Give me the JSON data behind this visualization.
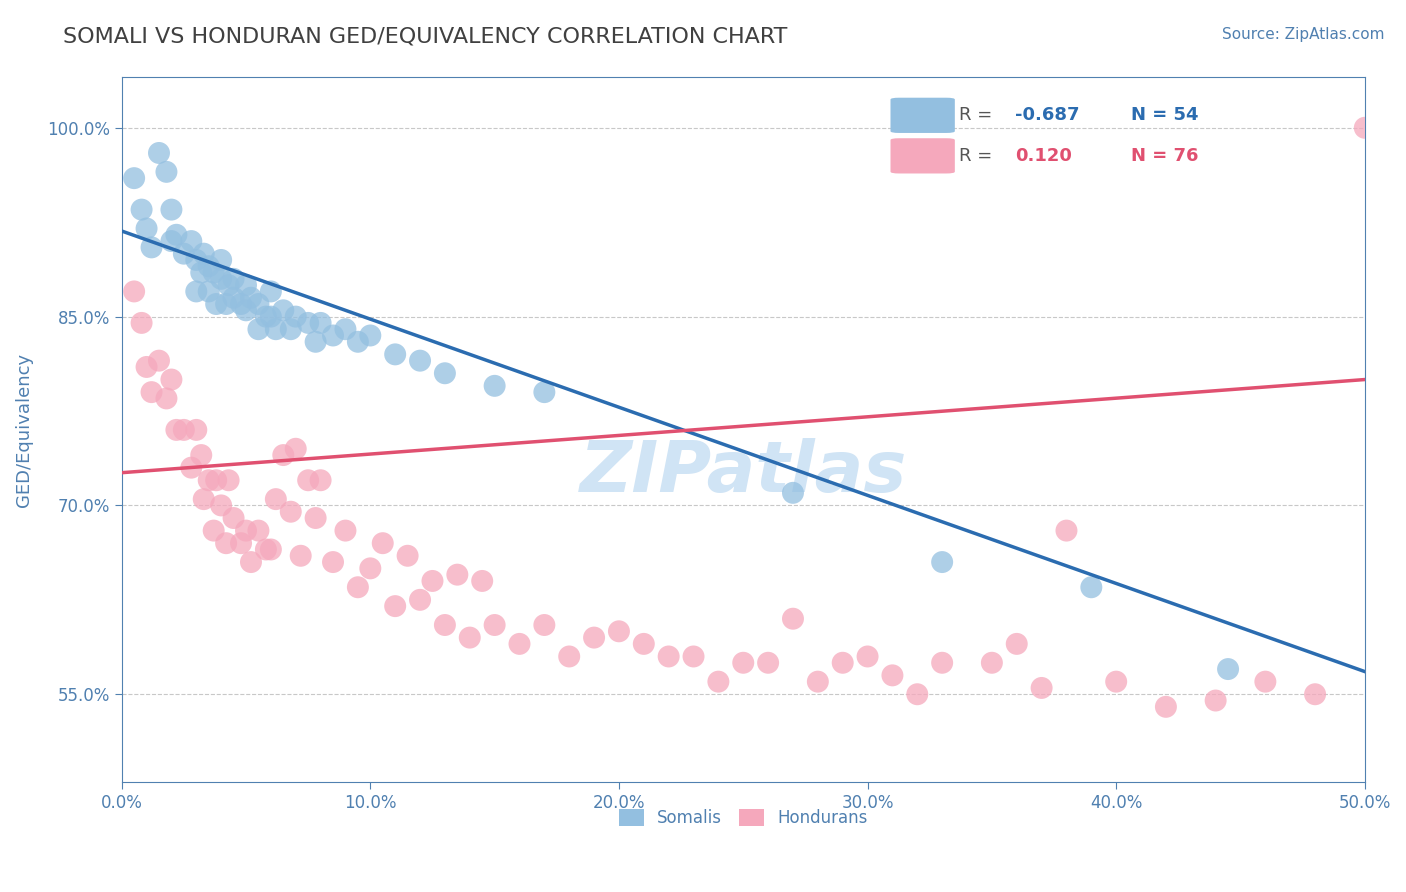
{
  "title": "SOMALI VS HONDURAN GED/EQUIVALENCY CORRELATION CHART",
  "source_text": "Source: ZipAtlas.com",
  "ylabel": "GED/Equivalency",
  "legend_somali_label": "Somalis",
  "legend_honduran_label": "Hondurans",
  "R_somali": -0.687,
  "N_somali": 54,
  "R_honduran": 0.12,
  "N_honduran": 76,
  "xlim": [
    0.0,
    0.5
  ],
  "ylim": [
    0.48,
    1.04
  ],
  "yticks": [
    0.55,
    0.7,
    0.85,
    1.0
  ],
  "ytick_labels": [
    "55.0%",
    "70.0%",
    "85.0%",
    "100.0%"
  ],
  "xticks": [
    0.0,
    0.1,
    0.2,
    0.3,
    0.4,
    0.5
  ],
  "xtick_labels": [
    "0.0%",
    "10.0%",
    "20.0%",
    "30.0%",
    "40.0%",
    "50.0%"
  ],
  "somali_color": "#93bfe0",
  "honduran_color": "#f5a8bc",
  "somali_line_color": "#2b6cb0",
  "honduran_line_color": "#e05070",
  "title_color": "#404040",
  "axis_color": "#5080b0",
  "watermark_color": "#d0e4f5",
  "background_color": "#ffffff",
  "grid_color": "#c8c8c8",
  "somali_points_x": [
    0.005,
    0.008,
    0.01,
    0.012,
    0.015,
    0.018,
    0.02,
    0.02,
    0.022,
    0.025,
    0.028,
    0.03,
    0.03,
    0.032,
    0.033,
    0.035,
    0.035,
    0.037,
    0.038,
    0.04,
    0.04,
    0.042,
    0.043,
    0.045,
    0.045,
    0.048,
    0.05,
    0.05,
    0.052,
    0.055,
    0.055,
    0.058,
    0.06,
    0.06,
    0.062,
    0.065,
    0.068,
    0.07,
    0.075,
    0.078,
    0.08,
    0.085,
    0.09,
    0.095,
    0.1,
    0.11,
    0.12,
    0.13,
    0.15,
    0.17,
    0.27,
    0.33,
    0.39,
    0.445
  ],
  "somali_points_y": [
    0.96,
    0.935,
    0.92,
    0.905,
    0.98,
    0.965,
    0.935,
    0.91,
    0.915,
    0.9,
    0.91,
    0.895,
    0.87,
    0.885,
    0.9,
    0.89,
    0.87,
    0.885,
    0.86,
    0.895,
    0.88,
    0.86,
    0.875,
    0.88,
    0.865,
    0.86,
    0.875,
    0.855,
    0.865,
    0.86,
    0.84,
    0.85,
    0.87,
    0.85,
    0.84,
    0.855,
    0.84,
    0.85,
    0.845,
    0.83,
    0.845,
    0.835,
    0.84,
    0.83,
    0.835,
    0.82,
    0.815,
    0.805,
    0.795,
    0.79,
    0.71,
    0.655,
    0.635,
    0.57
  ],
  "honduran_points_x": [
    0.005,
    0.008,
    0.01,
    0.012,
    0.015,
    0.018,
    0.02,
    0.022,
    0.025,
    0.028,
    0.03,
    0.032,
    0.033,
    0.035,
    0.037,
    0.038,
    0.04,
    0.042,
    0.043,
    0.045,
    0.048,
    0.05,
    0.052,
    0.055,
    0.058,
    0.06,
    0.062,
    0.065,
    0.068,
    0.07,
    0.072,
    0.075,
    0.078,
    0.08,
    0.085,
    0.09,
    0.095,
    0.1,
    0.105,
    0.11,
    0.115,
    0.12,
    0.125,
    0.13,
    0.135,
    0.14,
    0.145,
    0.15,
    0.16,
    0.17,
    0.18,
    0.19,
    0.2,
    0.21,
    0.22,
    0.23,
    0.24,
    0.25,
    0.26,
    0.27,
    0.28,
    0.29,
    0.3,
    0.31,
    0.32,
    0.33,
    0.35,
    0.36,
    0.37,
    0.38,
    0.4,
    0.42,
    0.44,
    0.46,
    0.48,
    0.5
  ],
  "honduran_points_y": [
    0.87,
    0.845,
    0.81,
    0.79,
    0.815,
    0.785,
    0.8,
    0.76,
    0.76,
    0.73,
    0.76,
    0.74,
    0.705,
    0.72,
    0.68,
    0.72,
    0.7,
    0.67,
    0.72,
    0.69,
    0.67,
    0.68,
    0.655,
    0.68,
    0.665,
    0.665,
    0.705,
    0.74,
    0.695,
    0.745,
    0.66,
    0.72,
    0.69,
    0.72,
    0.655,
    0.68,
    0.635,
    0.65,
    0.67,
    0.62,
    0.66,
    0.625,
    0.64,
    0.605,
    0.645,
    0.595,
    0.64,
    0.605,
    0.59,
    0.605,
    0.58,
    0.595,
    0.6,
    0.59,
    0.58,
    0.58,
    0.56,
    0.575,
    0.575,
    0.61,
    0.56,
    0.575,
    0.58,
    0.565,
    0.55,
    0.575,
    0.575,
    0.59,
    0.555,
    0.68,
    0.56,
    0.54,
    0.545,
    0.56,
    0.55,
    1.0
  ],
  "blue_line_x": [
    0.0,
    0.5
  ],
  "blue_line_y": [
    0.918,
    0.568
  ],
  "pink_line_x": [
    0.0,
    0.5
  ],
  "pink_line_y": [
    0.726,
    0.8
  ]
}
